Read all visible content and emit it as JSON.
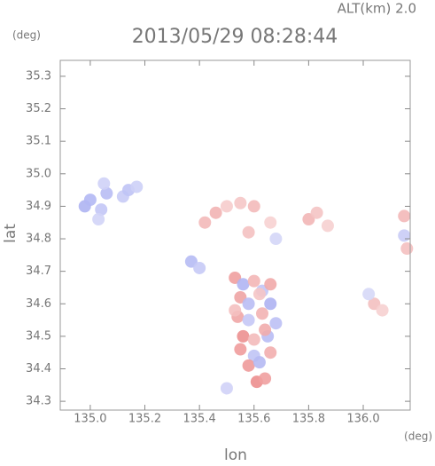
{
  "chart_data": {
    "type": "scatter",
    "title": "2013/05/29 08:28:44",
    "altitude_label": "ALT(km)  2.0",
    "y_unit": "(deg)",
    "x_unit": "(deg)",
    "xlabel": "lon",
    "ylabel": "lat",
    "xlim": [
      134.89,
      136.172
    ],
    "ylim": [
      34.273,
      35.349
    ],
    "xticks": [
      {
        "value": 135,
        "label": "135.0"
      },
      135.2,
      135.4,
      135.6,
      135.8,
      {
        "value": 136,
        "label": "136.0"
      }
    ],
    "yticks": [
      34.3,
      34.4,
      34.5,
      34.6,
      34.7,
      34.8,
      34.9,
      {
        "value": 35,
        "label": "35.0"
      },
      35.1,
      35.2,
      35.3
    ],
    "x": [
      134.98,
      135.0,
      135.04,
      135.06,
      135.12,
      135.14,
      135.17,
      135.05,
      135.03,
      135.42,
      135.46,
      135.5,
      135.55,
      135.6,
      135.58,
      135.66,
      135.68,
      135.8,
      135.83,
      135.87,
      136.15,
      136.15,
      136.16,
      135.37,
      135.4,
      135.53,
      135.56,
      135.6,
      135.63,
      135.66,
      135.55,
      135.58,
      135.62,
      135.66,
      135.54,
      135.58,
      135.63,
      135.68,
      135.56,
      135.6,
      135.65,
      135.55,
      135.6,
      135.66,
      135.58,
      135.62,
      135.53,
      135.64,
      135.61,
      135.64,
      135.5,
      136.04,
      136.07,
      136.02
    ],
    "values": [
      34.9,
      34.92,
      34.89,
      34.94,
      34.93,
      34.95,
      34.96,
      34.97,
      34.86,
      34.85,
      34.88,
      34.9,
      34.91,
      34.9,
      34.82,
      34.85,
      34.8,
      34.86,
      34.88,
      34.84,
      34.87,
      34.81,
      34.77,
      34.73,
      34.71,
      34.68,
      34.66,
      34.67,
      34.64,
      34.66,
      34.62,
      34.6,
      34.63,
      34.6,
      34.56,
      34.55,
      34.57,
      34.54,
      34.5,
      34.49,
      34.5,
      34.46,
      34.44,
      34.45,
      34.41,
      34.42,
      34.58,
      34.52,
      34.36,
      34.37,
      34.34,
      34.6,
      34.58,
      34.63
    ],
    "colors": [
      "#aeb4f2",
      "#b3b8f4",
      "#c3c6f6",
      "#b8bdf4",
      "#c8cbf6",
      "#bfc3f5",
      "#cdd0f7",
      "#cfd2f7",
      "#d2d4f7",
      "#f3b9b9",
      "#f2b4b4",
      "#f6cccc",
      "#f5c6c6",
      "#f3baba",
      "#f4c1c1",
      "#f7d2d2",
      "#d4d6f7",
      "#f2b6b6",
      "#f4c4c4",
      "#f6d0d0",
      "#f3b8b8",
      "#c9ccf6",
      "#f4c0c0",
      "#b6bbf4",
      "#c7caf6",
      "#f0a0a0",
      "#b0b5f3",
      "#f3b6b6",
      "#c2c5f6",
      "#f1aaaa",
      "#eea4a4",
      "#b9bdf4",
      "#f5c5c5",
      "#aeb3f2",
      "#f0a6a6",
      "#c5c8f6",
      "#f2b2b2",
      "#bcc0f5",
      "#ec9090",
      "#f3baba",
      "#b8bcf4",
      "#f09c9c",
      "#c0c4f5",
      "#f2aeae",
      "#ee9a9a",
      "#b5b9f3",
      "#f4c0c0",
      "#f1acac",
      "#ec8e8e",
      "#f0a0a0",
      "#d0d2f7",
      "#f3c0c0",
      "#f6d0d0",
      "#d6d8f7"
    ]
  }
}
